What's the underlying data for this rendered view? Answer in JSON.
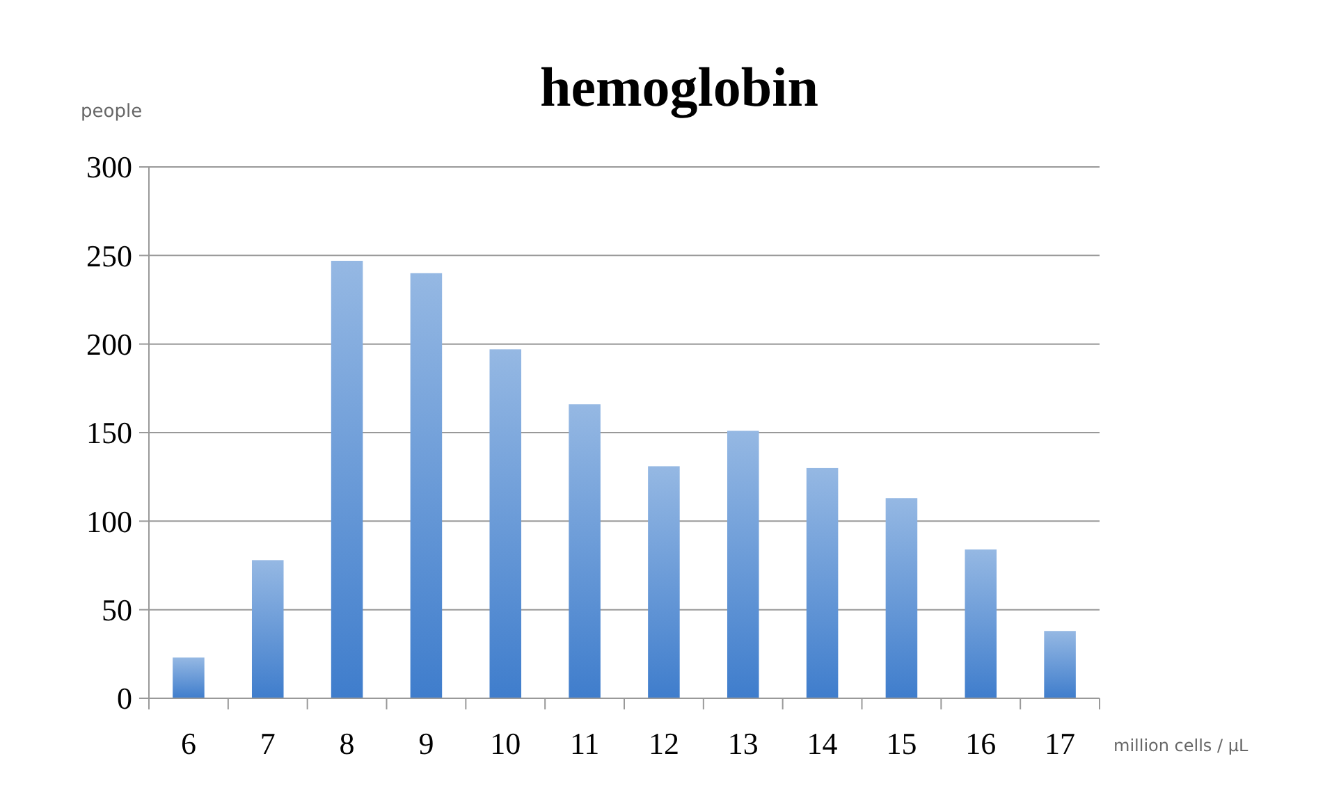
{
  "chart_data": {
    "type": "bar",
    "title": "hemoglobin",
    "xlabel": "million cells / μL",
    "ylabel": "people",
    "categories": [
      "6",
      "7",
      "8",
      "9",
      "10",
      "11",
      "12",
      "13",
      "14",
      "15",
      "16",
      "17"
    ],
    "values": [
      23,
      78,
      247,
      240,
      197,
      166,
      131,
      151,
      130,
      113,
      84,
      38
    ],
    "color": "#3f7dcc",
    "ylim": [
      0,
      300
    ],
    "yticks": [
      0,
      50,
      100,
      150,
      200,
      250,
      300
    ],
    "grid": "y"
  }
}
